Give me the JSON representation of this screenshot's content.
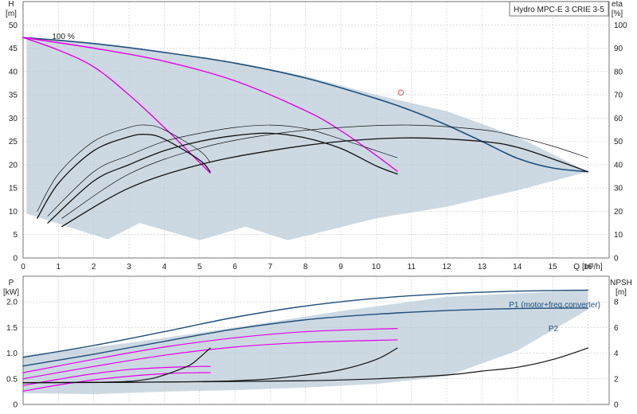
{
  "chart_data": [
    {
      "type": "line",
      "title": "Hydro MPC-E 3 CRIE 3-5",
      "xlabel": "Q",
      "xunit": "[m³/h]",
      "ylabel": "H",
      "yunit": "[m]",
      "y2label": "eta",
      "y2unit": "[%]",
      "xlim": [
        0,
        16.6
      ],
      "ylim": [
        0,
        55
      ],
      "y2lim": [
        0,
        110
      ],
      "xticks": [
        0,
        1,
        2,
        3,
        4,
        5,
        6,
        7,
        8,
        9,
        10,
        11,
        12,
        13,
        14,
        15,
        16
      ],
      "yticks": [
        0,
        5,
        10,
        15,
        20,
        25,
        30,
        35,
        40,
        45,
        50
      ],
      "y2ticks": [
        0,
        10,
        20,
        30,
        40,
        50,
        60,
        70,
        80,
        90,
        100
      ],
      "grid": true,
      "annotations": [
        {
          "text": "100 %",
          "x": 0.55,
          "y": 47.3
        }
      ],
      "marker": {
        "x": 10.7,
        "y": 35.5,
        "shape": "circle"
      },
      "colors": {
        "max_curve": "#1f4e79",
        "speed_curves": "#e600e6",
        "eta_curves": "#111111",
        "envelope": "#ccd9e3",
        "marker": "#e05050"
      },
      "envelope": {
        "x": [
          0.1,
          2.4,
          3.3,
          5.0,
          6.3,
          7.5,
          10,
          12,
          14,
          16,
          16,
          14,
          12,
          10,
          8,
          6,
          4,
          2,
          0.1
        ],
        "y": [
          9.5,
          4.0,
          7.5,
          3.8,
          6.7,
          3.8,
          8.5,
          11,
          14.5,
          18.5,
          18.5,
          26,
          31.5,
          35,
          39,
          42,
          44,
          46,
          47.3
        ]
      },
      "series": [
        {
          "role": "max_head",
          "x": [
            0,
            2,
            4,
            6,
            8,
            10,
            11,
            12,
            13,
            14,
            15,
            16
          ],
          "y": [
            47.3,
            46,
            44.1,
            41.8,
            38.6,
            34.2,
            31.6,
            28.5,
            25,
            21.4,
            19.3,
            18.5
          ]
        },
        {
          "role": "head_speed_1",
          "x": [
            0,
            2,
            4,
            6,
            8,
            9,
            10,
            10.6
          ],
          "y": [
            47.3,
            45.0,
            42.2,
            38.0,
            31.6,
            27.3,
            22.0,
            18.6
          ]
        },
        {
          "role": "head_speed_2",
          "x": [
            0,
            1,
            2,
            3,
            4,
            4.6,
            5.3
          ],
          "y": [
            47.3,
            44.6,
            41.0,
            35.0,
            28.0,
            23.5,
            18.2
          ]
        },
        {
          "role": "eta_outer_full",
          "x": [
            1.1,
            3,
            5,
            7,
            9,
            11,
            13,
            14,
            15,
            16
          ],
          "y2": [
            13.5,
            30,
            40,
            46,
            50,
            51.5,
            50,
            47.5,
            42.5,
            37
          ]
        },
        {
          "role": "eta_outer_mid",
          "x": [
            0.7,
            2,
            3,
            4,
            5,
            6,
            7,
            8,
            9,
            10,
            10.6
          ],
          "y2": [
            15,
            33,
            40,
            46,
            50,
            52.5,
            53.5,
            51.5,
            47,
            39.5,
            36
          ]
        },
        {
          "role": "eta_outer_small",
          "x": [
            0.4,
            1,
            2,
            3,
            3.5,
            4,
            5,
            5.3
          ],
          "y2": [
            17,
            32,
            46,
            52,
            53,
            51,
            42,
            37
          ]
        },
        {
          "role": "eta_thin_full",
          "x": [
            1.1,
            3,
            5,
            7,
            9,
            11,
            13,
            14,
            15,
            16
          ],
          "y2": [
            17,
            36,
            47,
            53,
            56,
            57,
            55,
            52,
            48,
            43
          ]
        },
        {
          "role": "eta_thin_mid",
          "x": [
            0.7,
            2,
            3,
            4,
            5,
            6,
            7,
            8,
            9,
            10,
            10.6
          ],
          "y2": [
            18,
            37,
            44,
            50,
            53.5,
            56,
            57,
            55.5,
            51,
            46,
            43
          ]
        },
        {
          "role": "eta_thin_small",
          "x": [
            0.4,
            1,
            2,
            3,
            3.5,
            4,
            5,
            5.3
          ],
          "y2": [
            20,
            36,
            50,
            56,
            57,
            55,
            46,
            41
          ]
        }
      ]
    },
    {
      "type": "line",
      "xlabel": "",
      "ylabel": "P",
      "yunit": "[kW]",
      "y2label": "NPSH",
      "y2unit": "[m]",
      "xlim": [
        0,
        16.6
      ],
      "ylim": [
        0,
        2.5
      ],
      "y2lim": [
        0,
        10
      ],
      "yticks": [
        0,
        0.5,
        1.0,
        1.5,
        2.0
      ],
      "ytick_labels": [
        "0",
        "0.5",
        "1.0",
        "1.5",
        "2.0"
      ],
      "y2ticks": [
        0,
        2,
        4,
        6,
        8
      ],
      "grid": true,
      "colors": {
        "p1": "#1f4e79",
        "p2": "#1f4e79",
        "speed_curves": "#e600e6",
        "npsh_curves": "#111111",
        "envelope": "#ccd9e3"
      },
      "envelope": {
        "x": [
          0,
          3,
          6,
          9,
          12,
          15,
          16,
          16,
          14,
          12,
          10,
          8,
          6,
          4,
          2,
          0
        ],
        "y": [
          0.95,
          1.2,
          1.5,
          1.82,
          2.1,
          2.2,
          2.23,
          1.85,
          1.05,
          0.55,
          0.4,
          0.33,
          0.28,
          0.25,
          0.2,
          0.22
        ]
      },
      "series": [
        {
          "name": "P1 (motor+freq.converter)",
          "role": "p1",
          "x": [
            0,
            2,
            4,
            6,
            8,
            10,
            12,
            14,
            16
          ],
          "y": [
            0.92,
            1.15,
            1.42,
            1.7,
            1.92,
            2.07,
            2.16,
            2.21,
            2.23
          ]
        },
        {
          "name": "P2",
          "role": "p2",
          "x": [
            0,
            2,
            4,
            6,
            8,
            10,
            12,
            14,
            16
          ],
          "y": [
            0.75,
            0.98,
            1.23,
            1.47,
            1.65,
            1.76,
            1.83,
            1.87,
            1.88
          ]
        },
        {
          "role": "p_speed_1a",
          "x": [
            0,
            2,
            4,
            6,
            8,
            10,
            10.6
          ],
          "y": [
            0.62,
            0.88,
            1.12,
            1.3,
            1.42,
            1.47,
            1.48
          ]
        },
        {
          "role": "p_speed_1b",
          "x": [
            0,
            2,
            4,
            6,
            8,
            10,
            10.6
          ],
          "y": [
            0.5,
            0.74,
            0.96,
            1.12,
            1.21,
            1.25,
            1.26
          ]
        },
        {
          "role": "p_speed_2a",
          "x": [
            0,
            1,
            2,
            3,
            4,
            5,
            5.3
          ],
          "y": [
            0.37,
            0.49,
            0.6,
            0.68,
            0.72,
            0.74,
            0.74
          ]
        },
        {
          "role": "p_speed_2b",
          "x": [
            0,
            1,
            2,
            3,
            4,
            5,
            5.3
          ],
          "y": [
            0.26,
            0.38,
            0.48,
            0.55,
            0.6,
            0.62,
            0.62
          ]
        },
        {
          "role": "npsh_full",
          "x": [
            0,
            4,
            8,
            10,
            12,
            13,
            14,
            15,
            16
          ],
          "y2": [
            1.7,
            1.75,
            1.85,
            2.0,
            2.3,
            2.6,
            2.9,
            3.5,
            4.4
          ]
        },
        {
          "role": "npsh_mid",
          "x": [
            0,
            3,
            5,
            6,
            7,
            8,
            9,
            10,
            10.6
          ],
          "y2": [
            1.7,
            1.72,
            1.78,
            1.85,
            2.0,
            2.3,
            2.7,
            3.5,
            4.4
          ]
        },
        {
          "role": "npsh_small",
          "x": [
            0,
            2,
            3,
            3.6,
            4.0,
            4.5,
            4.8,
            5.3
          ],
          "y2": [
            1.7,
            1.72,
            1.8,
            2.0,
            2.3,
            2.8,
            3.2,
            4.4
          ]
        }
      ]
    }
  ]
}
